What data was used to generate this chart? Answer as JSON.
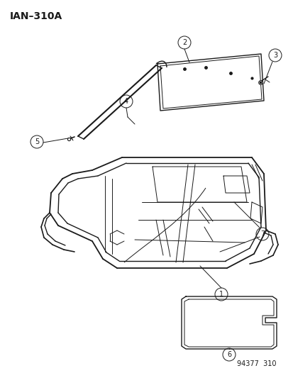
{
  "title": "IAN–310A",
  "subtitle": "94377  310",
  "bg_color": "#ffffff",
  "line_color": "#1a1a1a",
  "fig_w": 4.14,
  "fig_h": 5.33,
  "dpi": 100
}
